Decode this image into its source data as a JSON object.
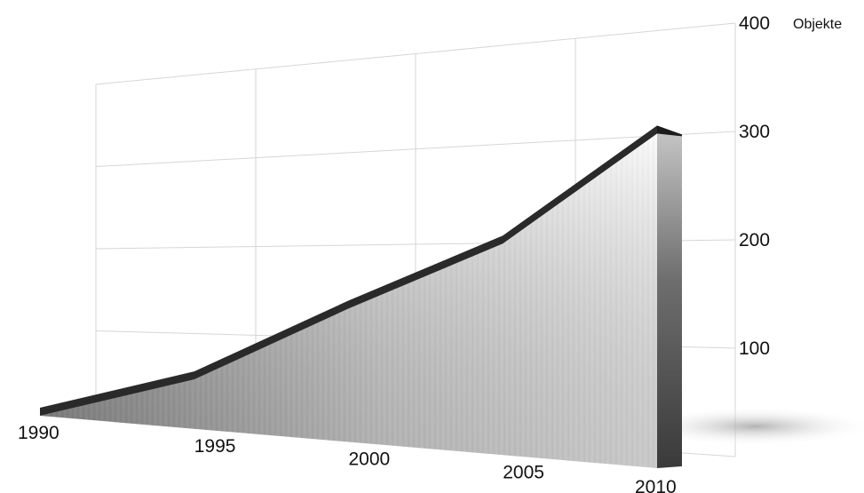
{
  "chart_data": {
    "type": "area",
    "x": [
      1990,
      1995,
      2000,
      2005,
      2010
    ],
    "values": [
      0,
      65,
      155,
      220,
      315
    ],
    "xlabel": "",
    "ylabel": "Objekte",
    "xlim": [
      1990,
      2010
    ],
    "ylim": [
      0,
      400
    ],
    "x_ticks": [
      "1990",
      "1995",
      "2000",
      "2005",
      "2010"
    ],
    "y_ticks": [
      "100",
      "200",
      "300",
      "400"
    ],
    "grid": true,
    "style": "3d-perspective",
    "colors": {
      "fill_light": "#f2f2f2",
      "fill_dark": "#8a8a8a",
      "edge": "#2a2a2a",
      "grid": "#d6d6d6"
    }
  }
}
